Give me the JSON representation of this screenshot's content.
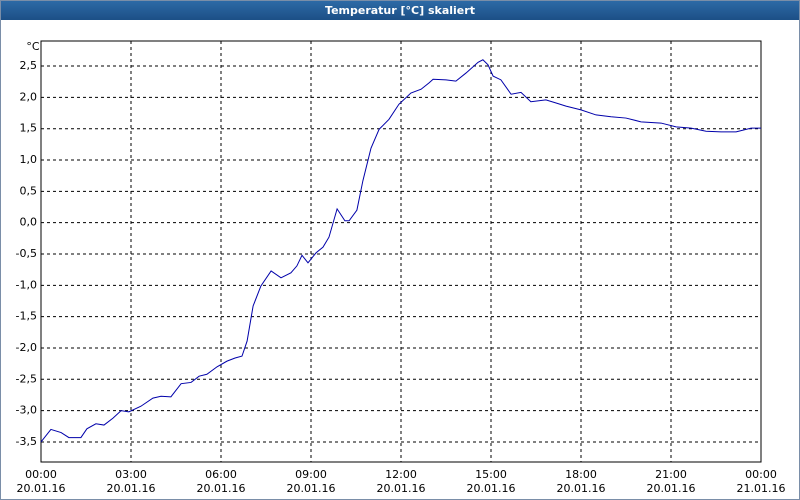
{
  "chart_data": {
    "type": "line",
    "title": "Temperatur [°C] skaliert",
    "y_unit": "°C",
    "x": [
      0,
      0.33,
      0.67,
      0.93,
      1.33,
      1.53,
      1.83,
      2.1,
      2.4,
      2.67,
      2.93,
      3.33,
      3.73,
      4.0,
      4.33,
      4.67,
      5.0,
      5.27,
      5.53,
      5.87,
      6.2,
      6.47,
      6.7,
      6.87,
      7.07,
      7.33,
      7.67,
      8.0,
      8.33,
      8.53,
      8.7,
      8.9,
      9.17,
      9.4,
      9.6,
      9.87,
      10.13,
      10.27,
      10.53,
      10.73,
      11.0,
      11.27,
      11.6,
      11.93,
      12.33,
      12.67,
      12.93,
      13.07,
      13.5,
      13.83,
      14.17,
      14.57,
      14.73,
      14.9,
      15.07,
      15.33,
      15.67,
      16.0,
      16.33,
      16.83,
      17.17,
      17.5,
      18.0,
      18.5,
      19.0,
      19.5,
      20.0,
      20.67,
      21.17,
      21.67,
      22.17,
      22.67,
      23.17,
      23.67,
      24
    ],
    "series": [
      {
        "name": "Temperatur",
        "color": "#0000aa",
        "values": [
          -3.5,
          -3.3,
          -3.35,
          -3.43,
          -3.43,
          -3.29,
          -3.21,
          -3.23,
          -3.12,
          -3.0,
          -3.02,
          -2.93,
          -2.8,
          -2.77,
          -2.78,
          -2.57,
          -2.55,
          -2.45,
          -2.42,
          -2.3,
          -2.21,
          -2.16,
          -2.13,
          -1.89,
          -1.33,
          -1.01,
          -0.77,
          -0.88,
          -0.8,
          -0.69,
          -0.52,
          -0.64,
          -0.48,
          -0.39,
          -0.23,
          0.22,
          0.03,
          0.03,
          0.2,
          0.67,
          1.19,
          1.49,
          1.65,
          1.89,
          2.07,
          2.13,
          2.23,
          2.29,
          2.28,
          2.26,
          2.39,
          2.56,
          2.6,
          2.52,
          2.34,
          2.28,
          2.05,
          2.08,
          1.93,
          1.96,
          1.91,
          1.86,
          1.8,
          1.72,
          1.69,
          1.67,
          1.61,
          1.59,
          1.53,
          1.51,
          1.46,
          1.45,
          1.45,
          1.51,
          1.51
        ]
      }
    ],
    "xlim": [
      0,
      24
    ],
    "xticks": [
      {
        "value": 0,
        "label": "00:00\n20.01.16"
      },
      {
        "value": 3,
        "label": "03:00\n20.01.16"
      },
      {
        "value": 6,
        "label": "06:00\n20.01.16"
      },
      {
        "value": 9,
        "label": "09:00\n20.01.16"
      },
      {
        "value": 12,
        "label": "12:00\n20.01.16"
      },
      {
        "value": 15,
        "label": "15:00\n20.01.16"
      },
      {
        "value": 18,
        "label": "18:00\n20.01.16"
      },
      {
        "value": 21,
        "label": "21:00\n20.01.16"
      },
      {
        "value": 24,
        "label": "00:00\n21.01.16"
      }
    ],
    "ylim": [
      -3.82,
      2.9
    ],
    "yticks": [
      {
        "value": 2.5,
        "label": "2,5"
      },
      {
        "value": 2,
        "label": "2,0"
      },
      {
        "value": 1.5,
        "label": "1,5"
      },
      {
        "value": 1,
        "label": "1,0"
      },
      {
        "value": 0.5,
        "label": "0,5"
      },
      {
        "value": 0,
        "label": "0,0"
      },
      {
        "value": -0.5,
        "label": "-0,5"
      },
      {
        "value": -1,
        "label": "-1,0"
      },
      {
        "value": -1.5,
        "label": "-1,5"
      },
      {
        "value": -2,
        "label": "-2,0"
      },
      {
        "value": -2.5,
        "label": "-2,5"
      },
      {
        "value": -3,
        "label": "-3,0"
      },
      {
        "value": -3.5,
        "label": "-3,5"
      }
    ],
    "grid": true
  }
}
